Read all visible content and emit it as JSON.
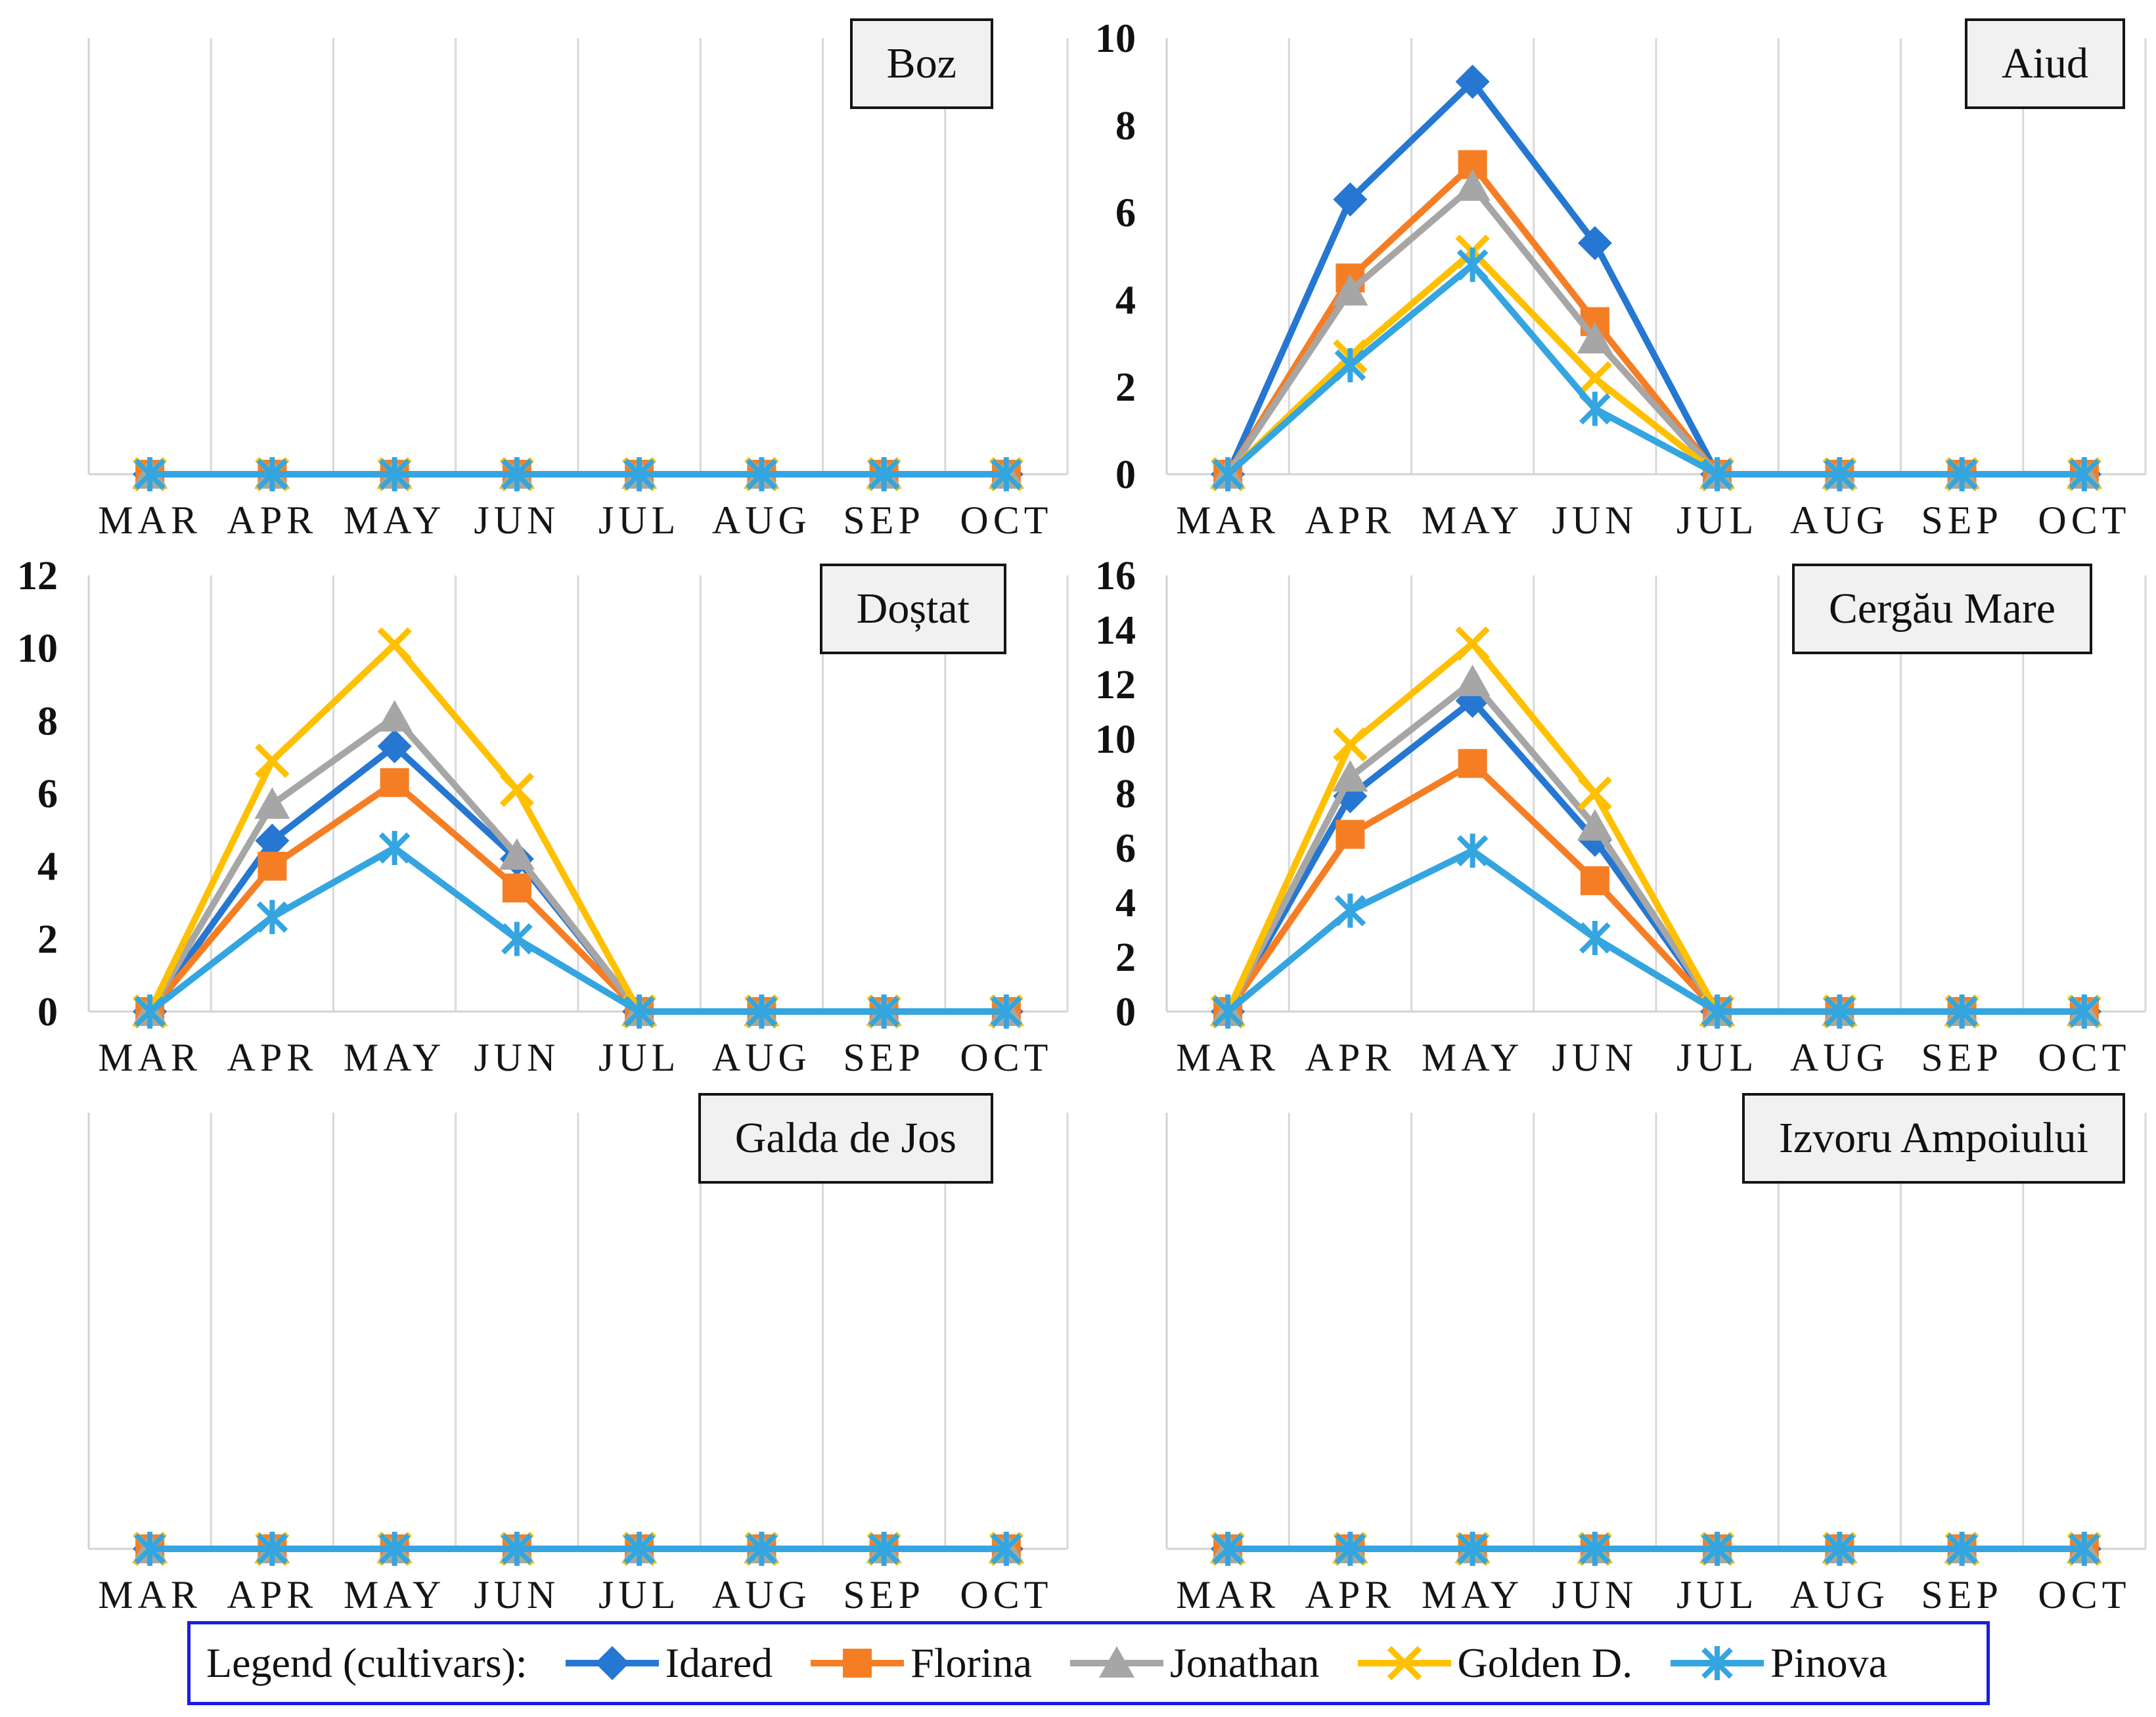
{
  "legend": {
    "label": "Legend (cultivars):",
    "items": [
      {
        "name": "Idared",
        "color": "#2577d2",
        "marker": "diamond"
      },
      {
        "name": "Florina",
        "color": "#f57e25",
        "marker": "square"
      },
      {
        "name": "Jonathan",
        "color": "#a6a6a6",
        "marker": "triangle"
      },
      {
        "name": "Golden D.",
        "color": "#ffc000",
        "marker": "x"
      },
      {
        "name": "Pinova",
        "color": "#35a5e0",
        "marker": "star"
      }
    ],
    "border_color": "#1c1ce0"
  },
  "chart_data": [
    {
      "type": "line",
      "title": "Boz",
      "x": [
        "MAR",
        "APR",
        "MAY",
        "JUN",
        "JUL",
        "AUG",
        "SEP",
        "OCT"
      ],
      "ylim": [
        0,
        10
      ],
      "yticks": [],
      "grid": "vertical-only",
      "legend_position": "bottom-shared",
      "series": [
        {
          "name": "Idared",
          "values": [
            0,
            0,
            0,
            0,
            0,
            0,
            0,
            0
          ]
        },
        {
          "name": "Florina",
          "values": [
            0,
            0,
            0,
            0,
            0,
            0,
            0,
            0
          ]
        },
        {
          "name": "Jonathan",
          "values": [
            0,
            0,
            0,
            0,
            0,
            0,
            0,
            0
          ]
        },
        {
          "name": "Golden D.",
          "values": [
            0,
            0,
            0,
            0,
            0,
            0,
            0,
            0
          ]
        },
        {
          "name": "Pinova",
          "values": [
            0,
            0,
            0,
            0,
            0,
            0,
            0,
            0
          ]
        }
      ]
    },
    {
      "type": "line",
      "title": "Aiud",
      "x": [
        "MAR",
        "APR",
        "MAY",
        "JUN",
        "JUL",
        "AUG",
        "SEP",
        "OCT"
      ],
      "ylim": [
        0,
        10
      ],
      "yticks": [
        0,
        2,
        4,
        6,
        8,
        10
      ],
      "grid": "vertical-only",
      "legend_position": "bottom-shared",
      "series": [
        {
          "name": "Idared",
          "values": [
            0,
            6.3,
            9.0,
            5.3,
            0,
            0,
            0,
            0
          ]
        },
        {
          "name": "Florina",
          "values": [
            0,
            4.5,
            7.1,
            3.5,
            0,
            0,
            0,
            0
          ]
        },
        {
          "name": "Jonathan",
          "values": [
            0,
            4.2,
            6.6,
            3.1,
            0,
            0,
            0,
            0
          ]
        },
        {
          "name": "Golden D.",
          "values": [
            0,
            2.7,
            5.1,
            2.2,
            0,
            0,
            0,
            0
          ]
        },
        {
          "name": "Pinova",
          "values": [
            0,
            2.5,
            4.8,
            1.5,
            0,
            0,
            0,
            0
          ]
        }
      ]
    },
    {
      "type": "line",
      "title": "Doștat",
      "x": [
        "MAR",
        "APR",
        "MAY",
        "JUN",
        "JUL",
        "AUG",
        "SEP",
        "OCT"
      ],
      "ylim": [
        0,
        12
      ],
      "yticks": [
        0,
        2,
        4,
        6,
        8,
        10,
        12
      ],
      "grid": "vertical-only",
      "legend_position": "bottom-shared",
      "series": [
        {
          "name": "Idared",
          "values": [
            0,
            4.7,
            7.3,
            4.2,
            0,
            0,
            0,
            0
          ]
        },
        {
          "name": "Florina",
          "values": [
            0,
            4.0,
            6.3,
            3.4,
            0,
            0,
            0,
            0
          ]
        },
        {
          "name": "Jonathan",
          "values": [
            0,
            5.7,
            8.1,
            4.3,
            0,
            0,
            0,
            0
          ]
        },
        {
          "name": "Golden D.",
          "values": [
            0,
            6.9,
            10.1,
            6.1,
            0,
            0,
            0,
            0
          ]
        },
        {
          "name": "Pinova",
          "values": [
            0,
            2.6,
            4.5,
            2.0,
            0,
            0,
            0,
            0
          ]
        }
      ]
    },
    {
      "type": "line",
      "title": "Cergău Mare",
      "x": [
        "MAR",
        "APR",
        "MAY",
        "JUN",
        "JUL",
        "AUG",
        "SEP",
        "OCT"
      ],
      "ylim": [
        0,
        16
      ],
      "yticks": [
        0,
        2,
        4,
        6,
        8,
        10,
        12,
        14,
        16
      ],
      "grid": "vertical-only",
      "legend_position": "bottom-shared",
      "series": [
        {
          "name": "Idared",
          "values": [
            0,
            7.9,
            11.4,
            6.3,
            0,
            0,
            0,
            0
          ]
        },
        {
          "name": "Florina",
          "values": [
            0,
            6.5,
            9.1,
            4.8,
            0,
            0,
            0,
            0
          ]
        },
        {
          "name": "Jonathan",
          "values": [
            0,
            8.6,
            12.1,
            6.8,
            0,
            0,
            0,
            0
          ]
        },
        {
          "name": "Golden D.",
          "values": [
            0,
            9.8,
            13.5,
            8.0,
            0,
            0,
            0,
            0
          ]
        },
        {
          "name": "Pinova",
          "values": [
            0,
            3.7,
            5.9,
            2.7,
            0,
            0,
            0,
            0
          ]
        }
      ]
    },
    {
      "type": "line",
      "title": "Galda de Jos",
      "x": [
        "MAR",
        "APR",
        "MAY",
        "JUN",
        "JUL",
        "AUG",
        "SEP",
        "OCT"
      ],
      "ylim": [
        0,
        10
      ],
      "yticks": [],
      "grid": "vertical-only",
      "legend_position": "bottom-shared",
      "series": [
        {
          "name": "Idared",
          "values": [
            0,
            0,
            0,
            0,
            0,
            0,
            0,
            0
          ]
        },
        {
          "name": "Florina",
          "values": [
            0,
            0,
            0,
            0,
            0,
            0,
            0,
            0
          ]
        },
        {
          "name": "Jonathan",
          "values": [
            0,
            0,
            0,
            0,
            0,
            0,
            0,
            0
          ]
        },
        {
          "name": "Golden D.",
          "values": [
            0,
            0,
            0,
            0,
            0,
            0,
            0,
            0
          ]
        },
        {
          "name": "Pinova",
          "values": [
            0,
            0,
            0,
            0,
            0,
            0,
            0,
            0
          ]
        }
      ]
    },
    {
      "type": "line",
      "title": "Izvoru Ampoiului",
      "x": [
        "MAR",
        "APR",
        "MAY",
        "JUN",
        "JUL",
        "AUG",
        "SEP",
        "OCT"
      ],
      "ylim": [
        0,
        10
      ],
      "yticks": [],
      "grid": "vertical-only",
      "legend_position": "bottom-shared",
      "series": [
        {
          "name": "Idared",
          "values": [
            0,
            0,
            0,
            0,
            0,
            0,
            0,
            0
          ]
        },
        {
          "name": "Florina",
          "values": [
            0,
            0,
            0,
            0,
            0,
            0,
            0,
            0
          ]
        },
        {
          "name": "Jonathan",
          "values": [
            0,
            0,
            0,
            0,
            0,
            0,
            0,
            0
          ]
        },
        {
          "name": "Golden D.",
          "values": [
            0,
            0,
            0,
            0,
            0,
            0,
            0,
            0
          ]
        },
        {
          "name": "Pinova",
          "values": [
            0,
            0,
            0,
            0,
            0,
            0,
            0,
            0
          ]
        }
      ]
    }
  ]
}
